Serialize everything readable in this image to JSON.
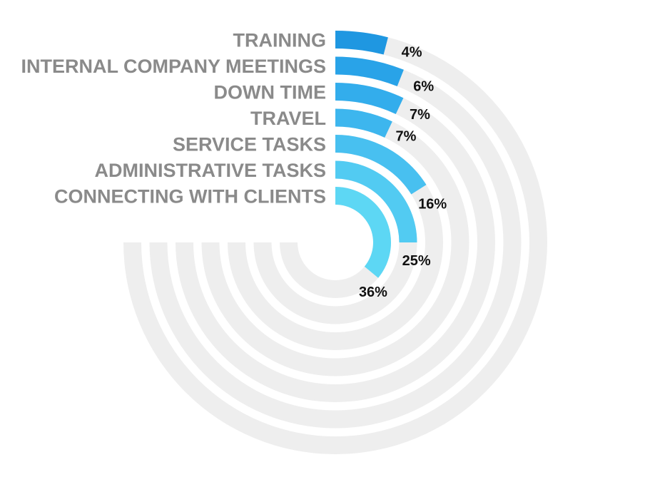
{
  "chart_data": {
    "type": "radial-bar",
    "categories": [
      "TRAINING",
      "INTERNAL COMPANY MEETINGS",
      "DOWN TIME",
      "TRAVEL",
      "SERVICE TASKS",
      "ADMINISTRATIVE TASKS",
      "CONNECTING WITH CLIENTS"
    ],
    "values": [
      4,
      6,
      7,
      7,
      16,
      25,
      36
    ],
    "value_labels": [
      "4%",
      "6%",
      "7%",
      "7%",
      "16%",
      "25%",
      "36%"
    ],
    "unit": "%",
    "max": 100,
    "title": "",
    "colors": [
      "#1f97e1",
      "#29a3e8",
      "#33adec",
      "#3db6ee",
      "#48c0f0",
      "#52cbf2",
      "#5dd7f4"
    ],
    "track_color": "#eeeeee",
    "label_color": "#8a8a8a",
    "value_label_color": "#111111"
  }
}
